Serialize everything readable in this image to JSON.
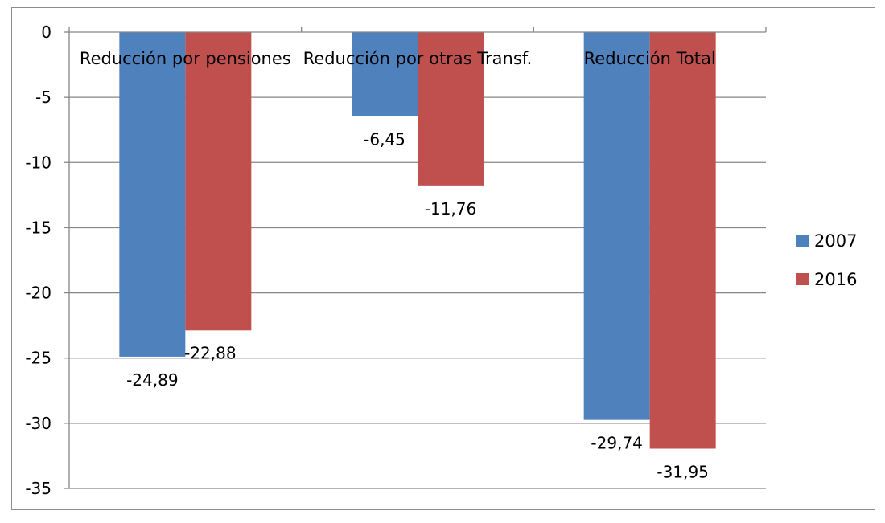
{
  "chart_data": {
    "type": "bar",
    "categories": [
      "Reducción por pensiones",
      "Reducción por otras Transf.",
      "Reducción Total"
    ],
    "series": [
      {
        "name": "2007",
        "values": [
          -24.89,
          -6.45,
          -29.74
        ],
        "labels": [
          "-24,89",
          "-6,45",
          "-29,74"
        ],
        "color": "#4f81bd"
      },
      {
        "name": "2016",
        "values": [
          -22.88,
          -11.76,
          -31.95
        ],
        "labels": [
          "-22,88",
          "-11,76",
          "-31,95"
        ],
        "color": "#c0504d"
      }
    ],
    "y_ticks": [
      0,
      -5,
      -10,
      -15,
      -20,
      -25,
      -30,
      -35
    ],
    "y_tick_labels": [
      "0",
      "-5",
      "-10",
      "-15",
      "-20",
      "-25",
      "-30",
      "-35"
    ],
    "ylim": [
      -35,
      0
    ],
    "grid": true,
    "legend_position": "right",
    "title": "",
    "xlabel": "",
    "ylabel": ""
  }
}
